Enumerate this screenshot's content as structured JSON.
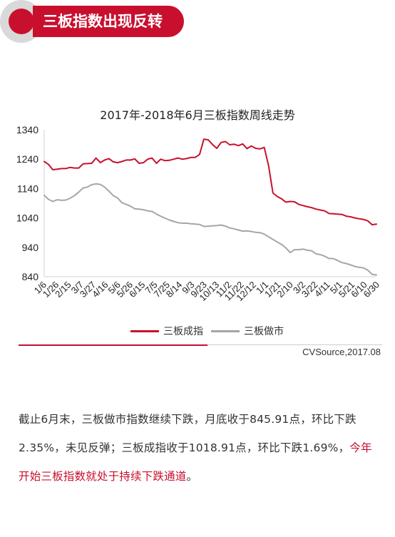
{
  "header": {
    "title": "三板指数出现反转",
    "accent_color": "#c8102e",
    "circle_color": "#d9d9d9"
  },
  "chart_data": {
    "type": "line",
    "title": "2017年-2018年6月三板指数周线走势",
    "xlabel": "",
    "ylabel": "",
    "ylim": [
      840,
      1340
    ],
    "yticks": [
      840,
      940,
      1040,
      1140,
      1240,
      1340
    ],
    "ytick_labels": [
      "840",
      "940",
      "1040",
      "1140",
      "1240",
      "1340"
    ],
    "xtick_labels": [
      "1/6",
      "1/26",
      "2/15",
      "3/7",
      "3/27",
      "4/16",
      "5/6",
      "5/26",
      "6/15",
      "7/5",
      "7/25",
      "8/14",
      "9/3",
      "9/23",
      "10/13",
      "11/2",
      "11/22",
      "12/12",
      "1/1",
      "1/21",
      "2/10",
      "3/2",
      "3/22",
      "4/11",
      "5/1",
      "5/21",
      "6/10",
      "6/30"
    ],
    "xtick_positions": [
      0,
      2.86,
      5.71,
      8.57,
      11.43,
      14.29,
      17.14,
      20,
      22.86,
      25.71,
      28.57,
      31.43,
      34.29,
      37.14,
      40,
      42.86,
      45.71,
      48.57,
      51.43,
      54.29,
      57.14,
      60,
      62.86,
      65.71,
      68.57,
      71.43,
      74.29,
      77.14
    ],
    "x_count": 78,
    "grid": false,
    "legend_position": "bottom",
    "series": [
      {
        "name": "三板成指",
        "color": "#c8102e",
        "values": [
          1232,
          1222,
          1204,
          1206,
          1208,
          1208,
          1212,
          1210,
          1210,
          1224,
          1225,
          1226,
          1244,
          1228,
          1237,
          1242,
          1231,
          1228,
          1232,
          1237,
          1237,
          1241,
          1226,
          1228,
          1240,
          1244,
          1226,
          1240,
          1235,
          1236,
          1240,
          1244,
          1240,
          1242,
          1246,
          1246,
          1256,
          1308,
          1306,
          1290,
          1277,
          1297,
          1300,
          1289,
          1291,
          1286,
          1292,
          1276,
          1285,
          1277,
          1275,
          1280,
          1218,
          1125,
          1113,
          1105,
          1094,
          1096,
          1095,
          1086,
          1082,
          1078,
          1075,
          1070,
          1067,
          1064,
          1055,
          1054,
          1053,
          1052,
          1046,
          1044,
          1040,
          1037,
          1035,
          1030,
          1017,
          1019
        ]
      },
      {
        "name": "三板做市",
        "color": "#a6a6a6",
        "values": [
          1117,
          1103,
          1096,
          1102,
          1100,
          1101,
          1107,
          1116,
          1128,
          1142,
          1145,
          1153,
          1156,
          1154,
          1145,
          1131,
          1116,
          1108,
          1092,
          1086,
          1080,
          1071,
          1070,
          1068,
          1064,
          1062,
          1053,
          1046,
          1039,
          1033,
          1028,
          1024,
          1022,
          1022,
          1020,
          1019,
          1018,
          1011,
          1012,
          1013,
          1014,
          1016,
          1012,
          1006,
          1003,
          999,
          995,
          996,
          994,
          991,
          990,
          985,
          976,
          967,
          958,
          950,
          938,
          922,
          932,
          932,
          934,
          930,
          928,
          918,
          915,
          910,
          902,
          902,
          895,
          888,
          885,
          880,
          875,
          872,
          870,
          862,
          848,
          846
        ]
      }
    ]
  },
  "source": "CVSource,2017.08",
  "summary": {
    "part1": "截止6月末，三板做市指数继续下跌，月底收于845.91点，环比下跌2.35%，未见反弹；三板成指收于1018.91点，环比下跌1.69%，",
    "highlight": "今年开始三板指数就处于持续下跌通道",
    "part2": "。",
    "highlight_color": "#c8102e"
  }
}
